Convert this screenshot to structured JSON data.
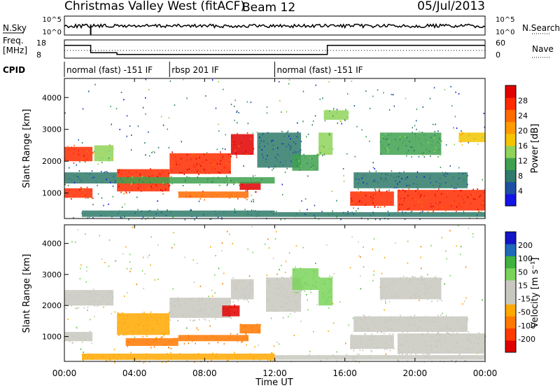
{
  "header": {
    "title": "Christmas Valley West (fitACF)",
    "beam": "Beam 12",
    "date": "05/Jul/2013"
  },
  "panel_labels": {
    "nsky": "N.Sky",
    "nsearch": "N.Search",
    "freq_line1": "Freq.",
    "freq_line2": "[MHz]",
    "nave": "Nave",
    "cpid": "CPID"
  },
  "colors": {
    "power": [
      "#1414e6",
      "#1f4fa5",
      "#2f7a6a",
      "#3fa14f",
      "#8fd35a",
      "#f5c400",
      "#ff9a00",
      "#ff6a00",
      "#ff2a00",
      "#e00000"
    ],
    "velocity": [
      "#e00000",
      "#ff3a00",
      "#ff7800",
      "#ffa800",
      "#c8c8c0",
      "#c8c8c0",
      "#7ad35a",
      "#3fb23f",
      "#1f6ab8",
      "#1414c8"
    ]
  },
  "chart_data": [
    {
      "type": "line",
      "panel": "noise",
      "ylabel_left": "N.Sky",
      "ylabel_right": "N.Search",
      "yticks_left": [
        "10^5",
        "10^0"
      ],
      "yticks_right": [
        "10^5",
        "10^0"
      ]
    },
    {
      "type": "line",
      "panel": "frequency",
      "ylabel_left": "Freq. [MHz]",
      "ylabel_right": "Nave",
      "yticks_left": [
        "18",
        "8"
      ],
      "yticks_right": [
        "60",
        "0"
      ],
      "series": [
        {
          "x": [
            0.0,
            1.5,
            1.5,
            3.0,
            3.0,
            15.0,
            15.0,
            24.0
          ],
          "y": [
            15,
            15,
            11,
            11,
            10,
            10,
            15,
            15
          ]
        }
      ]
    },
    {
      "type": "table",
      "panel": "cpid",
      "segments": [
        {
          "start": 0.0,
          "end": 6.0,
          "label": "normal (fast) -151 IF"
        },
        {
          "start": 6.0,
          "end": 12.0,
          "label": "rbsp 201 IF"
        },
        {
          "start": 12.0,
          "end": 24.0,
          "label": "normal (fast) -151 IF"
        }
      ]
    },
    {
      "type": "heatmap",
      "panel": "power",
      "ylabel": "Slant Range [km]",
      "yticks": [
        "1000",
        "2000",
        "3000",
        "4000"
      ],
      "ylim": [
        200,
        4600
      ],
      "xlim": [
        0,
        24
      ],
      "colorbar_label": "Power [dB]",
      "colorbar_ticks": [
        "4",
        "8",
        "12",
        "16",
        "20",
        "24",
        "28"
      ],
      "features": [
        {
          "t0": 0.0,
          "t1": 1.6,
          "r0": 2000,
          "r1": 2450,
          "v": 26
        },
        {
          "t0": 1.7,
          "t1": 2.8,
          "r0": 2000,
          "r1": 2500,
          "v": 14
        },
        {
          "t0": 0.0,
          "t1": 1.6,
          "r0": 850,
          "r1": 1150,
          "v": 24
        },
        {
          "t0": 0.0,
          "t1": 3.0,
          "r0": 1300,
          "r1": 1650,
          "v": 6
        },
        {
          "t0": 3.0,
          "t1": 6.0,
          "r0": 1050,
          "r1": 1750,
          "v": 26
        },
        {
          "t0": 6.0,
          "t1": 9.5,
          "r0": 1600,
          "r1": 2250,
          "v": 26
        },
        {
          "t0": 9.5,
          "t1": 10.8,
          "r0": 2200,
          "r1": 2850,
          "v": 27
        },
        {
          "t0": 10.0,
          "t1": 11.2,
          "r0": 1100,
          "r1": 1350,
          "v": 28
        },
        {
          "t0": 6.5,
          "t1": 10.5,
          "r0": 850,
          "r1": 1050,
          "v": 22
        },
        {
          "t0": 3.0,
          "t1": 12.0,
          "r0": 1300,
          "r1": 1500,
          "v": 10
        },
        {
          "t0": 1.0,
          "t1": 12.0,
          "r0": 250,
          "r1": 450,
          "v": 8
        },
        {
          "t0": 11.0,
          "t1": 13.5,
          "r0": 1800,
          "r1": 2900,
          "v": 6
        },
        {
          "t0": 13.0,
          "t1": 14.5,
          "r0": 1700,
          "r1": 2200,
          "v": 10
        },
        {
          "t0": 14.5,
          "t1": 15.3,
          "r0": 2200,
          "r1": 2900,
          "v": 12
        },
        {
          "t0": 14.8,
          "t1": 16.2,
          "r0": 3300,
          "r1": 3600,
          "v": 12
        },
        {
          "t0": 16.5,
          "t1": 23.0,
          "r0": 1150,
          "r1": 1650,
          "v": 6
        },
        {
          "t0": 16.3,
          "t1": 18.8,
          "r0": 600,
          "r1": 1050,
          "v": 26
        },
        {
          "t0": 19.0,
          "t1": 24.0,
          "r0": 450,
          "r1": 1100,
          "v": 26
        },
        {
          "t0": 18.0,
          "t1": 21.5,
          "r0": 2200,
          "r1": 2900,
          "v": 10
        },
        {
          "t0": 22.5,
          "t1": 24.0,
          "r0": 2600,
          "r1": 2900,
          "v": 16
        },
        {
          "t0": 12.0,
          "t1": 24.0,
          "r0": 250,
          "r1": 400,
          "v": 8
        }
      ]
    },
    {
      "type": "heatmap",
      "panel": "velocity",
      "ylabel": "Slant Range [km]",
      "yticks": [
        "1000",
        "2000",
        "3000",
        "4000"
      ],
      "ylim": [
        200,
        4600
      ],
      "xlim": [
        0,
        24
      ],
      "xticks": [
        "00:00",
        "04:00",
        "08:00",
        "12:00",
        "16:00",
        "20:00",
        "00:00"
      ],
      "xlabel": "Time UT",
      "colorbar_label": "Velocity [m s⁻¹]",
      "colorbar_ticks": [
        "-200",
        "-100",
        "-50",
        "-15",
        "15",
        "50",
        "100",
        "200"
      ],
      "features": [
        {
          "t0": 0.0,
          "t1": 2.8,
          "r0": 2000,
          "r1": 2500,
          "v": 0
        },
        {
          "t0": 0.0,
          "t1": 1.6,
          "r0": 850,
          "r1": 1150,
          "v": 0
        },
        {
          "t0": 3.0,
          "t1": 6.0,
          "r0": 1050,
          "r1": 1750,
          "v": -40
        },
        {
          "t0": 6.0,
          "t1": 9.5,
          "r0": 1600,
          "r1": 2250,
          "v": 0
        },
        {
          "t0": 9.5,
          "t1": 10.8,
          "r0": 2200,
          "r1": 2850,
          "v": 0
        },
        {
          "t0": 9.0,
          "t1": 10.0,
          "r0": 1650,
          "r1": 2000,
          "v": -200
        },
        {
          "t0": 10.0,
          "t1": 11.2,
          "r0": 1100,
          "r1": 1400,
          "v": -80
        },
        {
          "t0": 6.5,
          "t1": 10.5,
          "r0": 850,
          "r1": 1050,
          "v": -60
        },
        {
          "t0": 3.5,
          "t1": 6.5,
          "r0": 700,
          "r1": 950,
          "v": -60
        },
        {
          "t0": 11.5,
          "t1": 13.5,
          "r0": 1800,
          "r1": 2900,
          "v": 0
        },
        {
          "t0": 13.0,
          "t1": 14.5,
          "r0": 2500,
          "r1": 3200,
          "v": 30
        },
        {
          "t0": 14.5,
          "t1": 15.3,
          "r0": 2000,
          "r1": 2900,
          "v": 30
        },
        {
          "t0": 16.3,
          "t1": 18.8,
          "r0": 600,
          "r1": 1050,
          "v": 0
        },
        {
          "t0": 19.0,
          "t1": 24.0,
          "r0": 450,
          "r1": 1100,
          "v": 0
        },
        {
          "t0": 16.5,
          "t1": 23.0,
          "r0": 1150,
          "r1": 1650,
          "v": 0
        },
        {
          "t0": 18.0,
          "t1": 21.5,
          "r0": 2200,
          "r1": 2900,
          "v": 0
        },
        {
          "t0": 12.0,
          "t1": 24.0,
          "r0": 250,
          "r1": 400,
          "v": 0
        },
        {
          "t0": 1.0,
          "t1": 12.0,
          "r0": 250,
          "r1": 450,
          "v": -30
        }
      ]
    }
  ]
}
